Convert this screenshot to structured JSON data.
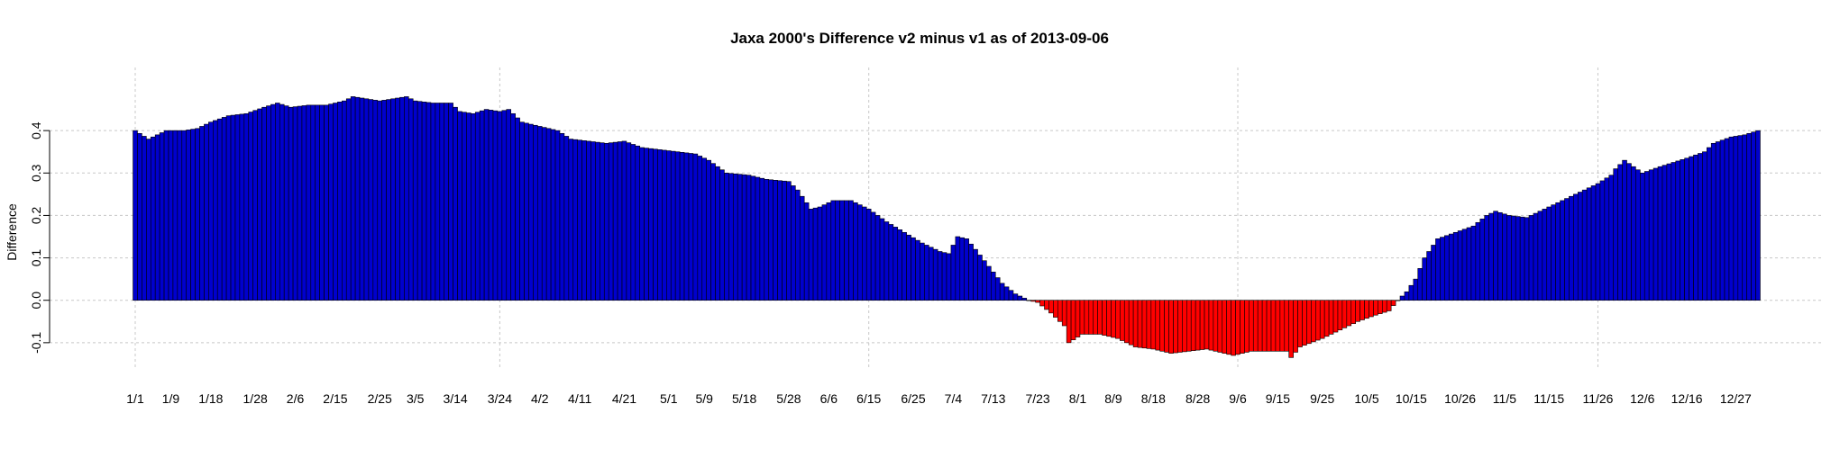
{
  "chart_data": {
    "type": "bar",
    "title": "Jaxa 2000's Difference v2 minus v1 as of 2013-09-06",
    "xlabel": "",
    "ylabel": "Difference",
    "ylim": [
      -0.13,
      0.5
    ],
    "y_ticks": [
      -0.1,
      0.0,
      0.1,
      0.2,
      0.3,
      0.4
    ],
    "y_tick_labels": [
      "-0.1",
      "0.0",
      "0.1",
      "0.2",
      "0.3",
      "0.4"
    ],
    "grid": true,
    "colors": {
      "positive": "#0000cd",
      "negative": "#ff0000",
      "bar_border": "#000000",
      "grid": "#c8c8c8"
    },
    "x_tick_labels": [
      "1/1",
      "1/9",
      "1/18",
      "1/28",
      "2/6",
      "2/15",
      "2/25",
      "3/5",
      "3/14",
      "3/24",
      "4/2",
      "4/11",
      "4/21",
      "5/1",
      "5/9",
      "5/18",
      "5/28",
      "6/6",
      "6/15",
      "6/25",
      "7/4",
      "7/13",
      "7/23",
      "8/1",
      "8/9",
      "8/18",
      "8/28",
      "9/6",
      "9/15",
      "9/25",
      "10/5",
      "10/15",
      "10/26",
      "11/5",
      "11/15",
      "11/26",
      "12/6",
      "12/16",
      "12/27"
    ],
    "x_tick_days": [
      1,
      9,
      18,
      28,
      37,
      46,
      56,
      64,
      73,
      83,
      92,
      101,
      111,
      121,
      129,
      138,
      148,
      157,
      166,
      176,
      185,
      194,
      204,
      213,
      221,
      230,
      240,
      249,
      258,
      268,
      278,
      288,
      299,
      309,
      319,
      330,
      340,
      350,
      361
    ],
    "day_count": 366,
    "vertical_grid_days": [
      1,
      83,
      166,
      249,
      330
    ],
    "profile": [
      [
        1,
        0.4
      ],
      [
        4,
        0.38
      ],
      [
        8,
        0.4
      ],
      [
        12,
        0.4
      ],
      [
        15,
        0.405
      ],
      [
        18,
        0.42
      ],
      [
        22,
        0.435
      ],
      [
        26,
        0.44
      ],
      [
        30,
        0.455
      ],
      [
        33,
        0.465
      ],
      [
        36,
        0.455
      ],
      [
        40,
        0.46
      ],
      [
        44,
        0.46
      ],
      [
        48,
        0.47
      ],
      [
        50,
        0.48
      ],
      [
        53,
        0.475
      ],
      [
        56,
        0.47
      ],
      [
        59,
        0.475
      ],
      [
        62,
        0.48
      ],
      [
        64,
        0.47
      ],
      [
        68,
        0.465
      ],
      [
        72,
        0.465
      ],
      [
        74,
        0.445
      ],
      [
        77,
        0.44
      ],
      [
        80,
        0.45
      ],
      [
        83,
        0.445
      ],
      [
        85,
        0.45
      ],
      [
        88,
        0.42
      ],
      [
        92,
        0.41
      ],
      [
        96,
        0.4
      ],
      [
        99,
        0.38
      ],
      [
        103,
        0.375
      ],
      [
        107,
        0.37
      ],
      [
        111,
        0.375
      ],
      [
        115,
        0.36
      ],
      [
        119,
        0.355
      ],
      [
        123,
        0.35
      ],
      [
        127,
        0.345
      ],
      [
        130,
        0.33
      ],
      [
        134,
        0.3
      ],
      [
        139,
        0.295
      ],
      [
        143,
        0.285
      ],
      [
        148,
        0.28
      ],
      [
        150,
        0.26
      ],
      [
        153,
        0.215
      ],
      [
        155,
        0.22
      ],
      [
        158,
        0.235
      ],
      [
        162,
        0.235
      ],
      [
        166,
        0.215
      ],
      [
        170,
        0.185
      ],
      [
        174,
        0.16
      ],
      [
        178,
        0.135
      ],
      [
        182,
        0.115
      ],
      [
        184,
        0.11
      ],
      [
        186,
        0.15
      ],
      [
        188,
        0.145
      ],
      [
        190,
        0.12
      ],
      [
        193,
        0.08
      ],
      [
        196,
        0.04
      ],
      [
        199,
        0.015
      ],
      [
        202,
        0.0
      ],
      [
        204,
        -0.005
      ],
      [
        207,
        -0.03
      ],
      [
        210,
        -0.06
      ],
      [
        211,
        -0.1
      ],
      [
        214,
        -0.08
      ],
      [
        218,
        -0.08
      ],
      [
        222,
        -0.09
      ],
      [
        226,
        -0.11
      ],
      [
        230,
        -0.115
      ],
      [
        234,
        -0.125
      ],
      [
        238,
        -0.12
      ],
      [
        242,
        -0.115
      ],
      [
        246,
        -0.125
      ],
      [
        248,
        -0.13
      ],
      [
        252,
        -0.12
      ],
      [
        256,
        -0.12
      ],
      [
        260,
        -0.12
      ],
      [
        261,
        -0.135
      ],
      [
        263,
        -0.11
      ],
      [
        268,
        -0.09
      ],
      [
        272,
        -0.07
      ],
      [
        276,
        -0.05
      ],
      [
        280,
        -0.035
      ],
      [
        283,
        -0.025
      ],
      [
        285,
        0.0
      ],
      [
        287,
        0.02
      ],
      [
        289,
        0.05
      ],
      [
        291,
        0.1
      ],
      [
        294,
        0.145
      ],
      [
        298,
        0.16
      ],
      [
        302,
        0.175
      ],
      [
        305,
        0.2
      ],
      [
        307,
        0.21
      ],
      [
        310,
        0.2
      ],
      [
        314,
        0.195
      ],
      [
        318,
        0.215
      ],
      [
        322,
        0.235
      ],
      [
        326,
        0.255
      ],
      [
        330,
        0.275
      ],
      [
        333,
        0.295
      ],
      [
        334,
        0.31
      ],
      [
        336,
        0.33
      ],
      [
        338,
        0.315
      ],
      [
        340,
        0.3
      ],
      [
        344,
        0.315
      ],
      [
        350,
        0.335
      ],
      [
        354,
        0.35
      ],
      [
        356,
        0.37
      ],
      [
        360,
        0.385
      ],
      [
        363,
        0.39
      ],
      [
        366,
        0.4
      ]
    ]
  }
}
